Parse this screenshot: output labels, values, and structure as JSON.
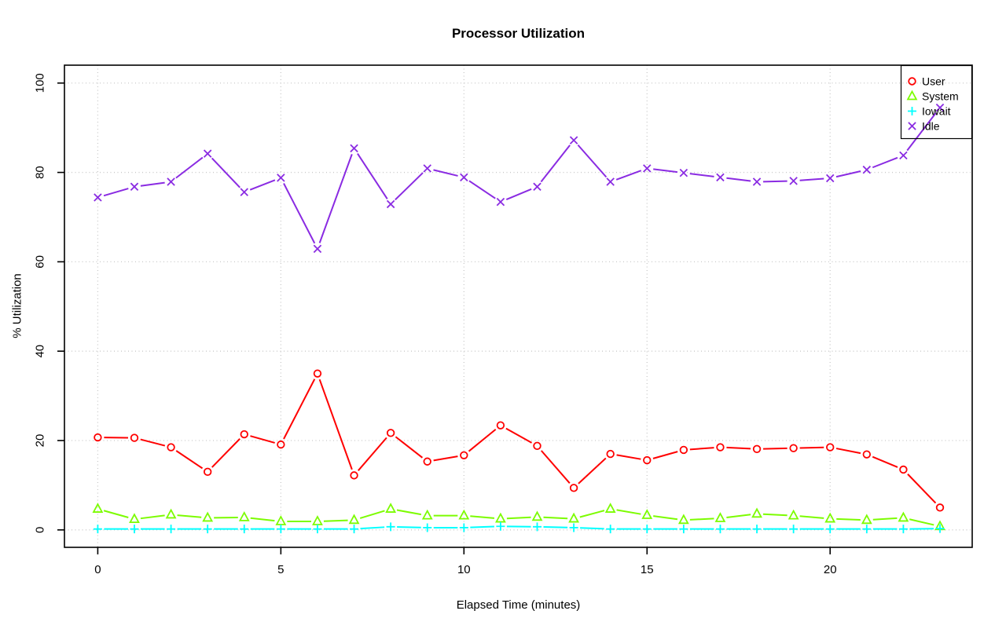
{
  "chart_data": {
    "type": "line",
    "title": "Processor Utilization",
    "xlabel": "Elapsed Time (minutes)",
    "ylabel": "% Utilization",
    "x": [
      0,
      1,
      2,
      3,
      4,
      5,
      6,
      7,
      8,
      9,
      10,
      11,
      12,
      13,
      14,
      15,
      16,
      17,
      18,
      19,
      20,
      21,
      22,
      23
    ],
    "xlim": [
      -0.91,
      23.88
    ],
    "ylim": [
      -3.9,
      104.0
    ],
    "xticks": [
      0,
      5,
      10,
      15,
      20
    ],
    "yticks": [
      0,
      20,
      40,
      60,
      80,
      100
    ],
    "grid": true,
    "grid_style": "dotted",
    "legend_position": "top-right",
    "series": [
      {
        "name": "User",
        "color": "#ff0000",
        "marker": "circle",
        "values": [
          20.7,
          20.6,
          18.5,
          13.0,
          21.4,
          19.1,
          35.0,
          12.2,
          21.7,
          15.3,
          16.7,
          23.4,
          18.8,
          9.4,
          17.0,
          15.6,
          17.9,
          18.5,
          18.1,
          18.3,
          18.5,
          16.9,
          13.5,
          5.0
        ]
      },
      {
        "name": "System",
        "color": "#7cfc00",
        "marker": "triangle",
        "values": [
          4.7,
          2.4,
          3.4,
          2.7,
          2.8,
          1.9,
          1.9,
          2.2,
          4.7,
          3.2,
          3.2,
          2.5,
          2.9,
          2.5,
          4.7,
          3.3,
          2.2,
          2.6,
          3.6,
          3.2,
          2.5,
          2.2,
          2.7,
          0.8
        ]
      },
      {
        "name": "Iowait",
        "color": "#00ffff",
        "marker": "plus",
        "values": [
          0.2,
          0.2,
          0.2,
          0.2,
          0.2,
          0.2,
          0.2,
          0.2,
          0.7,
          0.5,
          0.5,
          0.8,
          0.7,
          0.5,
          0.2,
          0.2,
          0.2,
          0.2,
          0.2,
          0.2,
          0.2,
          0.2,
          0.2,
          0.3
        ]
      },
      {
        "name": "Idle",
        "color": "#8a2be2",
        "marker": "x",
        "values": [
          74.4,
          76.8,
          77.9,
          84.2,
          75.6,
          78.8,
          62.9,
          85.4,
          72.9,
          80.9,
          78.9,
          73.4,
          76.8,
          87.2,
          77.9,
          80.9,
          79.9,
          78.9,
          77.9,
          78.1,
          78.7,
          80.6,
          83.8,
          94.5
        ]
      }
    ],
    "colors": {
      "axis": "#000000",
      "grid": "#c9c9c9",
      "background": "#ffffff"
    }
  }
}
